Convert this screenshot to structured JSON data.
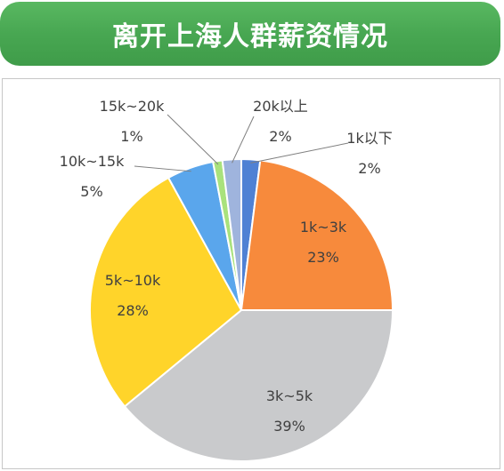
{
  "chart_data": {
    "type": "pie",
    "title": "离开上海人群薪资情况",
    "slices": [
      {
        "label": "1k以下",
        "value": 2,
        "value_label": "2%",
        "color": "#4f81d4"
      },
      {
        "label": "1k~3k",
        "value": 23,
        "value_label": "23%",
        "color": "#f78a3c"
      },
      {
        "label": "3k~5k",
        "value": 39,
        "value_label": "39%",
        "color": "#c9cacc"
      },
      {
        "label": "5k~10k",
        "value": 28,
        "value_label": "28%",
        "color": "#ffd42a"
      },
      {
        "label": "10k~15k",
        "value": 5,
        "value_label": "5%",
        "color": "#5aa6ec"
      },
      {
        "label": "15k~20k",
        "value": 1,
        "value_label": "1%",
        "color": "#a9e27c"
      },
      {
        "label": "20k以上",
        "value": 2,
        "value_label": "2%",
        "color": "#9fb4dd"
      }
    ],
    "legend": "none"
  }
}
